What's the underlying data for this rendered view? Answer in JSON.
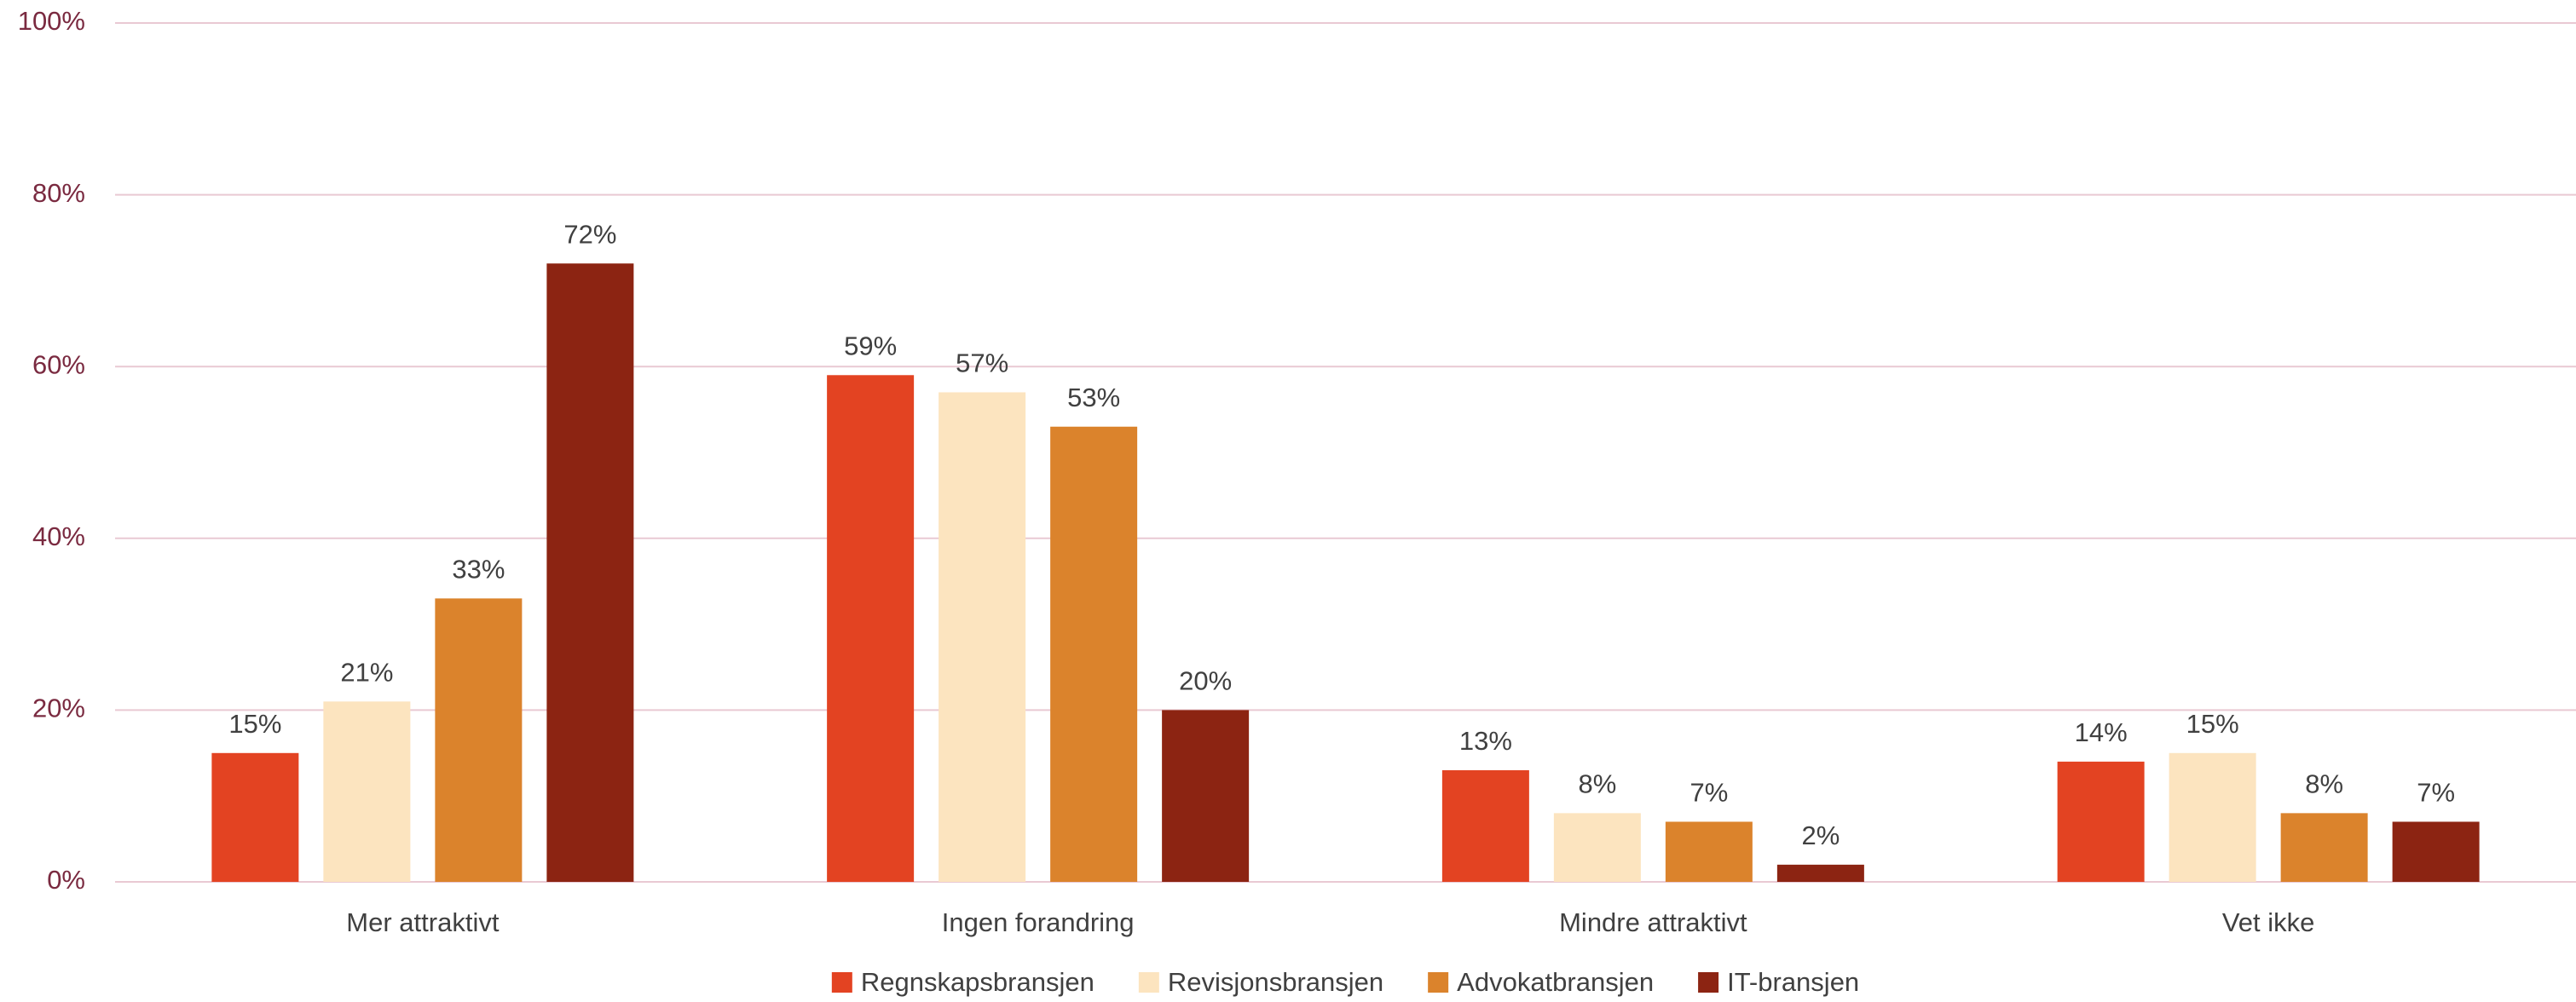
{
  "chart_data": {
    "type": "bar",
    "categories": [
      "Mer attraktivt",
      "Ingen forandring",
      "Mindre attraktivt",
      "Vet ikke"
    ],
    "series": [
      {
        "name": "Regnskapsbransjen",
        "color": "#e34322",
        "values": [
          15,
          59,
          13,
          14
        ],
        "value_labels": [
          "15%",
          "59%",
          "13%",
          "14%"
        ]
      },
      {
        "name": "Revisjonsbransjen",
        "color": "#fce4bf",
        "values": [
          21,
          57,
          8,
          15
        ],
        "value_labels": [
          "21%",
          "57%",
          "8%",
          "15%"
        ]
      },
      {
        "name": "Advokatbransjen",
        "color": "#db832c",
        "values": [
          33,
          53,
          7,
          8
        ],
        "value_labels": [
          "33%",
          "53%",
          "7%",
          "8%"
        ]
      },
      {
        "name": "IT-bransjen",
        "color": "#8c2412",
        "values": [
          72,
          20,
          2,
          7
        ],
        "value_labels": [
          "72%",
          "20%",
          "2%",
          "7%"
        ]
      }
    ],
    "ylim": [
      0,
      100
    ],
    "yticks": [
      {
        "value": 0,
        "label": "0%"
      },
      {
        "value": 20,
        "label": "20%"
      },
      {
        "value": 40,
        "label": "40%"
      },
      {
        "value": 60,
        "label": "60%"
      },
      {
        "value": 80,
        "label": "80%"
      },
      {
        "value": 100,
        "label": "100%"
      }
    ],
    "grid": true,
    "legend": "bottom"
  }
}
